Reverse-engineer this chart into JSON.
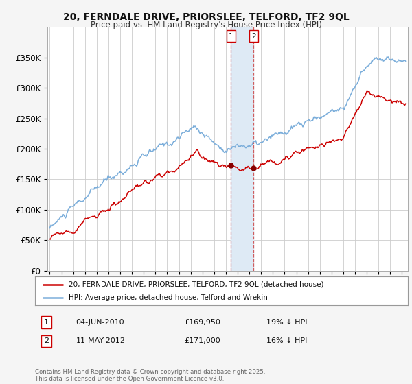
{
  "title": "20, FERNDALE DRIVE, PRIORSLEE, TELFORD, TF2 9QL",
  "subtitle": "Price paid vs. HM Land Registry's House Price Index (HPI)",
  "legend_entry1": "20, FERNDALE DRIVE, PRIORSLEE, TELFORD, TF2 9QL (detached house)",
  "legend_entry2": "HPI: Average price, detached house, Telford and Wrekin",
  "annotation1_date": "04-JUN-2010",
  "annotation1_price": "£169,950",
  "annotation1_hpi": "19% ↓ HPI",
  "annotation1_year": 2010.43,
  "annotation2_date": "11-MAY-2012",
  "annotation2_price": "£171,000",
  "annotation2_hpi": "16% ↓ HPI",
  "annotation2_year": 2012.37,
  "footer": "Contains HM Land Registry data © Crown copyright and database right 2025.\nThis data is licensed under the Open Government Licence v3.0.",
  "ylim": [
    0,
    400000
  ],
  "yticks": [
    0,
    50000,
    100000,
    150000,
    200000,
    250000,
    300000,
    350000
  ],
  "ytick_labels": [
    "£0",
    "£50K",
    "£100K",
    "£150K",
    "£200K",
    "£250K",
    "£300K",
    "£350K"
  ],
  "line1_color": "#cc0000",
  "line2_color": "#7aadda",
  "shade_color": "#deeaf5",
  "background_color": "#f5f5f5",
  "plot_bg_color": "#ffffff",
  "grid_color": "#cccccc",
  "xlim_start": 1994.8,
  "xlim_end": 2025.5
}
